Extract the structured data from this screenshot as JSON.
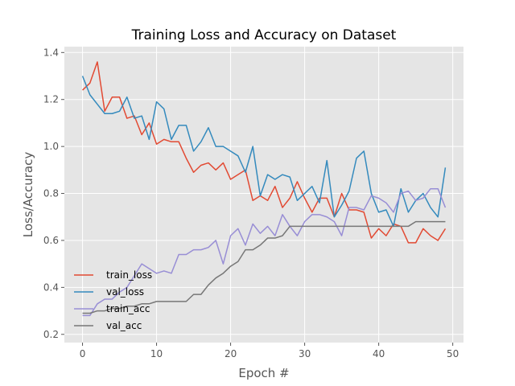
{
  "chart_data": {
    "type": "line",
    "title": "Training Loss and Accuracy on Dataset",
    "xlabel": "Epoch #",
    "ylabel": "Loss/Accuracy",
    "xlim": [
      -2.45,
      51.45
    ],
    "ylim": [
      0.165,
      1.425
    ],
    "xticks": [
      0,
      10,
      20,
      30,
      40,
      50
    ],
    "yticks": [
      0.2,
      0.4,
      0.6,
      0.8,
      1.0,
      1.2,
      1.4
    ],
    "ytick_labels": [
      "0.2",
      "0.4",
      "0.6",
      "0.8",
      "1.0",
      "1.2",
      "1.4"
    ],
    "grid": true,
    "legend_position": "lower-left",
    "style": {
      "plot_background": "#e5e5e5",
      "grid_color": "#ffffff"
    },
    "x": [
      0,
      1,
      2,
      3,
      4,
      5,
      6,
      7,
      8,
      9,
      10,
      11,
      12,
      13,
      14,
      15,
      16,
      17,
      18,
      19,
      20,
      21,
      22,
      23,
      24,
      25,
      26,
      27,
      28,
      29,
      30,
      31,
      32,
      33,
      34,
      35,
      36,
      37,
      38,
      39,
      40,
      41,
      42,
      43,
      44,
      45,
      46,
      47,
      48,
      49
    ],
    "series": [
      {
        "name": "train_loss",
        "color": "#e24a33",
        "values": [
          1.24,
          1.27,
          1.36,
          1.15,
          1.21,
          1.21,
          1.12,
          1.13,
          1.05,
          1.1,
          1.01,
          1.03,
          1.02,
          1.02,
          0.95,
          0.89,
          0.92,
          0.93,
          0.9,
          0.93,
          0.86,
          0.88,
          0.9,
          0.77,
          0.79,
          0.77,
          0.83,
          0.74,
          0.78,
          0.85,
          0.78,
          0.72,
          0.78,
          0.78,
          0.7,
          0.8,
          0.73,
          0.73,
          0.72,
          0.61,
          0.65,
          0.62,
          0.67,
          0.66,
          0.59,
          0.59,
          0.65,
          0.62,
          0.6,
          0.65
        ]
      },
      {
        "name": "val_loss",
        "color": "#348abd",
        "values": [
          1.3,
          1.22,
          1.18,
          1.14,
          1.14,
          1.15,
          1.21,
          1.12,
          1.13,
          1.03,
          1.19,
          1.16,
          1.03,
          1.09,
          1.09,
          0.98,
          1.02,
          1.08,
          1.0,
          1.0,
          0.98,
          0.96,
          0.89,
          1.0,
          0.79,
          0.88,
          0.86,
          0.88,
          0.87,
          0.77,
          0.8,
          0.83,
          0.76,
          0.94,
          0.7,
          0.75,
          0.81,
          0.95,
          0.98,
          0.8,
          0.72,
          0.73,
          0.66,
          0.82,
          0.72,
          0.77,
          0.8,
          0.74,
          0.7,
          0.91
        ]
      },
      {
        "name": "train_acc",
        "color": "#988ed5",
        "values": [
          0.28,
          0.28,
          0.33,
          0.35,
          0.35,
          0.38,
          0.4,
          0.45,
          0.5,
          0.48,
          0.46,
          0.47,
          0.46,
          0.54,
          0.54,
          0.56,
          0.56,
          0.57,
          0.6,
          0.5,
          0.62,
          0.65,
          0.58,
          0.67,
          0.63,
          0.66,
          0.62,
          0.71,
          0.66,
          0.62,
          0.68,
          0.71,
          0.71,
          0.7,
          0.68,
          0.62,
          0.74,
          0.74,
          0.73,
          0.79,
          0.78,
          0.76,
          0.72,
          0.8,
          0.81,
          0.77,
          0.78,
          0.82,
          0.82,
          0.74
        ]
      },
      {
        "name": "val_acc",
        "color": "#777777",
        "values": [
          0.29,
          0.29,
          0.3,
          0.3,
          0.31,
          0.31,
          0.32,
          0.32,
          0.33,
          0.33,
          0.34,
          0.34,
          0.34,
          0.34,
          0.34,
          0.37,
          0.37,
          0.41,
          0.44,
          0.46,
          0.49,
          0.51,
          0.56,
          0.56,
          0.58,
          0.61,
          0.61,
          0.62,
          0.66,
          0.66,
          0.66,
          0.66,
          0.66,
          0.66,
          0.66,
          0.66,
          0.66,
          0.66,
          0.66,
          0.66,
          0.66,
          0.66,
          0.66,
          0.66,
          0.66,
          0.68,
          0.68,
          0.68,
          0.68,
          0.68
        ]
      }
    ]
  }
}
